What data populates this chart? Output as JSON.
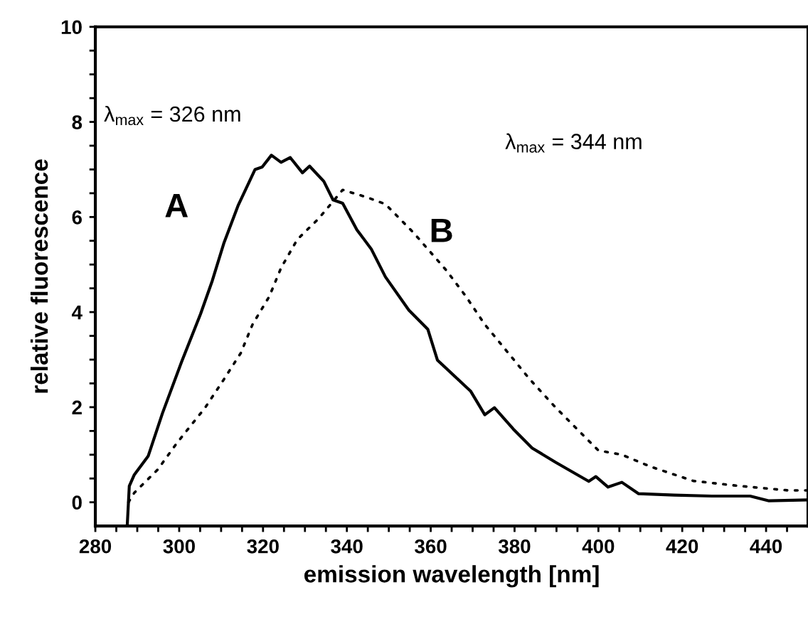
{
  "chart_data": {
    "type": "line",
    "xlabel": "emission wavelength [nm]",
    "ylabel": "relative fluorescence",
    "xlim": [
      280,
      450
    ],
    "ylim": [
      -0.5,
      10
    ],
    "xticks": [
      280,
      {
        "value": 285,
        "label": null
      },
      {
        "value": 290,
        "label": null
      },
      {
        "value": 295,
        "label": null
      },
      300,
      {
        "value": 305,
        "label": null
      },
      {
        "value": 310,
        "label": null
      },
      {
        "value": 315,
        "label": null
      },
      320,
      {
        "value": 325,
        "label": null
      },
      {
        "value": 330,
        "label": null
      },
      {
        "value": 335,
        "label": null
      },
      340,
      {
        "value": 345,
        "label": null
      },
      {
        "value": 350,
        "label": null
      },
      {
        "value": 355,
        "label": null
      },
      360,
      {
        "value": 365,
        "label": null
      },
      {
        "value": 370,
        "label": null
      },
      {
        "value": 375,
        "label": null
      },
      380,
      {
        "value": 385,
        "label": null
      },
      {
        "value": 390,
        "label": null
      },
      {
        "value": 395,
        "label": null
      },
      400,
      {
        "value": 405,
        "label": null
      },
      {
        "value": 410,
        "label": null
      },
      {
        "value": 415,
        "label": null
      },
      420,
      {
        "value": 425,
        "label": null
      },
      {
        "value": 430,
        "label": null
      },
      {
        "value": 435,
        "label": null
      },
      440,
      {
        "value": 445,
        "label": null
      }
    ],
    "yticks": [
      0,
      {
        "value": 0.5,
        "label": null
      },
      {
        "value": 1,
        "label": null
      },
      {
        "value": 1.5,
        "label": null
      },
      2,
      {
        "value": 2.5,
        "label": null
      },
      {
        "value": 3,
        "label": null
      },
      {
        "value": 3.5,
        "label": null
      },
      4,
      {
        "value": 4.5,
        "label": null
      },
      {
        "value": 5,
        "label": null
      },
      {
        "value": 5.5,
        "label": null
      },
      6,
      {
        "value": 6.5,
        "label": null
      },
      {
        "value": 7,
        "label": null
      },
      {
        "value": 7.5,
        "label": null
      },
      8,
      {
        "value": 8.5,
        "label": null
      },
      {
        "value": 9,
        "label": null
      },
      {
        "value": 9.5,
        "label": null
      },
      10
    ],
    "grid": false,
    "legend": false,
    "series": [
      {
        "name": "A",
        "color": "#000000",
        "line_style": "solid",
        "x": [
          287.6,
          288.1,
          289.3,
          292.6,
          296.0,
          300.6,
          305.1,
          307.9,
          310.7,
          314.1,
          318.1,
          319.8,
          322.0,
          324.3,
          326.5,
          329.4,
          331.1,
          334.5,
          336.7,
          339.0,
          342.4,
          345.8,
          349.2,
          354.8,
          359.3,
          361.6,
          369.5,
          372.9,
          375.2,
          379.7,
          384.2,
          389.8,
          397.7,
          399.4,
          402.3,
          405.6,
          409.6,
          418.1,
          427.1,
          436.2,
          440.7,
          449.7
        ],
        "values": [
          -0.5,
          0.34,
          0.58,
          0.97,
          1.87,
          2.96,
          3.96,
          4.66,
          5.46,
          6.25,
          7.0,
          7.05,
          7.3,
          7.15,
          7.25,
          6.93,
          7.07,
          6.75,
          6.36,
          6.29,
          5.73,
          5.33,
          4.74,
          4.04,
          3.64,
          2.99,
          2.34,
          1.84,
          1.99,
          1.54,
          1.14,
          0.84,
          0.44,
          0.54,
          0.32,
          0.42,
          0.18,
          0.15,
          0.13,
          0.13,
          0.03,
          0.05
        ]
      },
      {
        "name": "B",
        "color": "#000000",
        "line_style": "dotted",
        "x": [
          287.9,
          289.3,
          294.9,
          299.4,
          306.2,
          310.7,
          314.7,
          317.5,
          321.5,
          324.3,
          328.2,
          333.3,
          339.0,
          344.6,
          349.2,
          355.9,
          363.8,
          368.4,
          372.9,
          378.5,
          383.6,
          389.3,
          394.9,
          400.0,
          405.6,
          412.4,
          422.6,
          432.8,
          445.2,
          449.7
        ],
        "values": [
          0.0,
          0.2,
          0.69,
          1.24,
          1.99,
          2.59,
          3.14,
          3.74,
          4.33,
          4.93,
          5.53,
          5.97,
          6.57,
          6.42,
          6.27,
          5.67,
          4.87,
          4.33,
          3.74,
          3.14,
          2.59,
          2.04,
          1.54,
          1.09,
          1.0,
          0.75,
          0.45,
          0.35,
          0.25,
          0.25
        ]
      }
    ],
    "annotations": [
      "λ$_{max}$ = 326 nm",
      "λ$_{max}$ = 344 nm"
    ]
  }
}
